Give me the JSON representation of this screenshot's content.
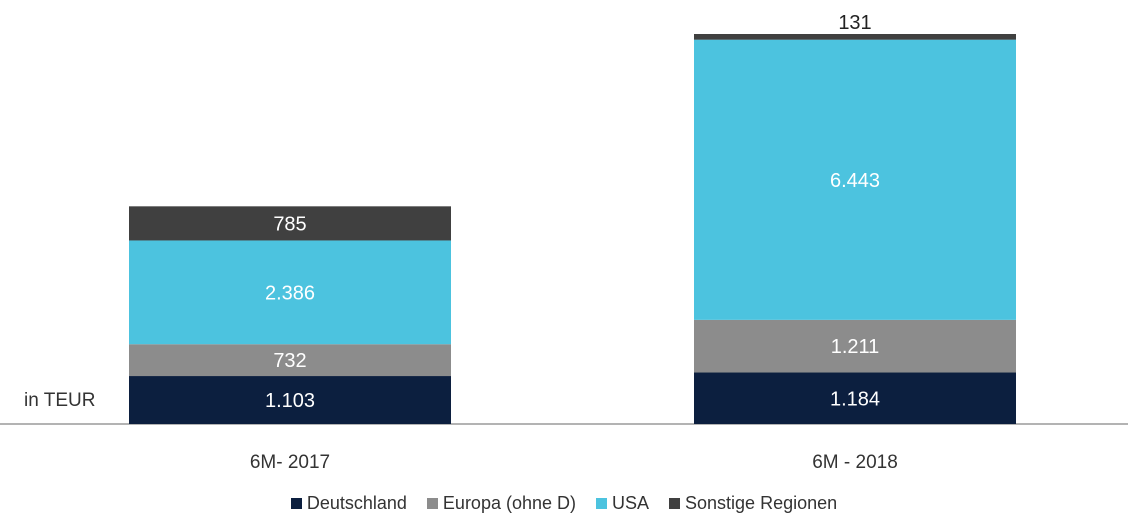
{
  "chart_data": {
    "type": "bar",
    "stacked": true,
    "unit_label": "in TEUR",
    "categories": [
      "6M- 2017",
      "6M - 2018"
    ],
    "series": [
      {
        "name": "Deutschland",
        "color": "#0c1f3f",
        "label_color": "#ffffff",
        "values": [
          1103,
          1184
        ],
        "labels": [
          "1.103",
          "1.184"
        ]
      },
      {
        "name": "Europa (ohne D)",
        "color": "#8c8c8c",
        "label_color": "#ffffff",
        "values": [
          732,
          1211
        ],
        "labels": [
          "732",
          "1.211"
        ]
      },
      {
        "name": "USA",
        "color": "#4cc3df",
        "label_color": "#ffffff",
        "values": [
          2386,
          6443
        ],
        "labels": [
          "2.386",
          "6.443"
        ]
      },
      {
        "name": "Sonstige Regionen",
        "color": "#404040",
        "label_color": "#ffffff",
        "values": [
          785,
          131
        ],
        "labels": [
          "785",
          "131"
        ]
      }
    ],
    "legend_position": "bottom",
    "grid": false
  }
}
